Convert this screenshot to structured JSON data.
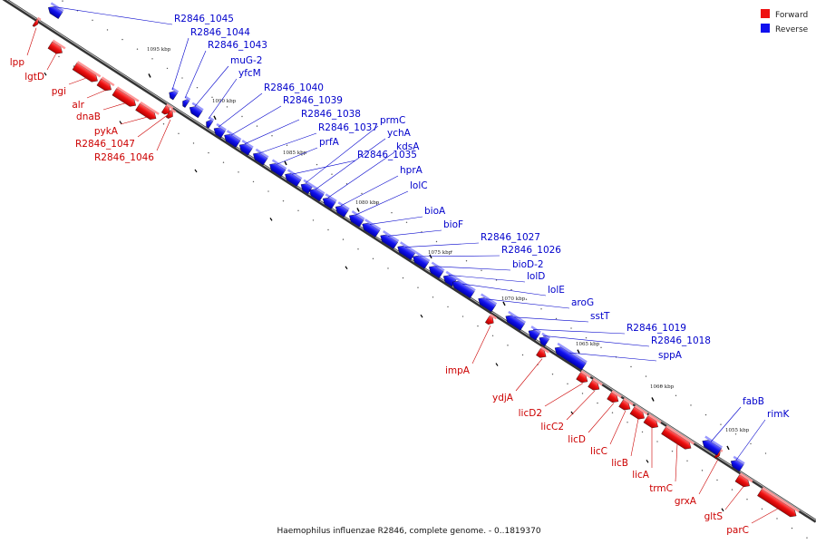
{
  "caption": "Haemophilus influenzae R2846, complete genome. - 0..1819370",
  "legend": {
    "forward": {
      "label": "Forward",
      "color": "#ee1111"
    },
    "reverse": {
      "label": "Reverse",
      "color": "#1111ee"
    }
  },
  "ticks": [
    "1095 kbp",
    "1090 kbp",
    "1085 kbp",
    "1080 kbp",
    "1075 kbp",
    "1070 kbp",
    "1065 kbp",
    "1060 kbp",
    "1055 kbp"
  ],
  "forward_genes": [
    "lpp",
    "lgtD",
    "pgi",
    "alr",
    "dnaB",
    "pykA",
    "R2846_1047",
    "R2846_1046",
    "impA",
    "ydjA",
    "licD2",
    "licC2",
    "licD",
    "licC",
    "licB",
    "licA",
    "trmC",
    "grxA",
    "gltS",
    "parC"
  ],
  "reverse_genes": [
    "R2846_1045",
    "R2846_1044",
    "R2846_1043",
    "muG-2",
    "yfcM",
    "R2846_1040",
    "R2846_1039",
    "R2846_1038",
    "R2846_1037",
    "prfA",
    "R2846_1035",
    "prmC",
    "ychA",
    "kdsA",
    "hprA",
    "lolC",
    "bioA",
    "bioF",
    "R2846_1027",
    "R2846_1026",
    "bioD-2",
    "lolD",
    "lolE",
    "aroG",
    "sstT",
    "R2846_1019",
    "R2846_1018",
    "sppA",
    "fabB",
    "rimK"
  ]
}
